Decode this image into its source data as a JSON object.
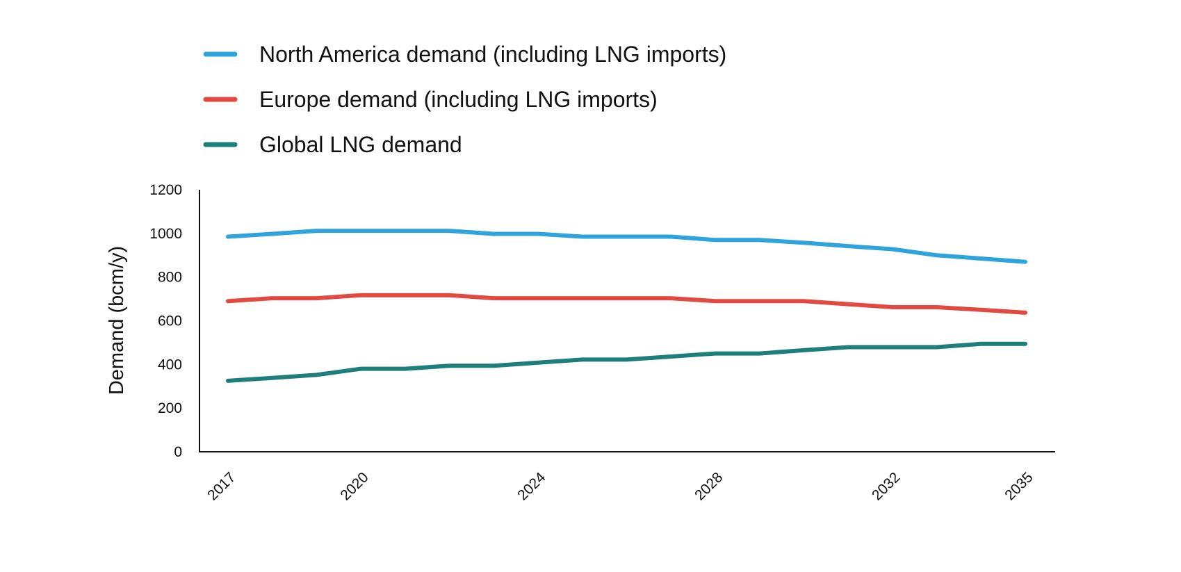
{
  "chart_data": {
    "type": "line",
    "title": "",
    "xlabel": "",
    "ylabel": "Demand (bcm/y)",
    "x": [
      2017,
      2018,
      2019,
      2020,
      2021,
      2022,
      2023,
      2024,
      2025,
      2026,
      2027,
      2028,
      2029,
      2030,
      2031,
      2032,
      2033,
      2034,
      2035
    ],
    "x_tick_labels": [
      "2017",
      "2020",
      "2024",
      "2028",
      "2032",
      "2035"
    ],
    "y_tick_labels": [
      "0",
      "200",
      "400",
      "600",
      "800",
      "1000",
      "1200"
    ],
    "ylim": [
      0,
      1200
    ],
    "grid": false,
    "legend_position": "top-left",
    "series": [
      {
        "name": "North America demand (including LNG imports)",
        "color": "#2ea3dc",
        "values": [
          985,
          998,
          1012,
          1012,
          1012,
          1012,
          998,
          998,
          985,
          985,
          985,
          970,
          970,
          957,
          942,
          928,
          900,
          885,
          870
        ]
      },
      {
        "name": "Europe demand (including LNG imports)",
        "color": "#e24a41",
        "values": [
          690,
          703,
          703,
          717,
          717,
          717,
          703,
          703,
          703,
          703,
          703,
          690,
          690,
          690,
          676,
          662,
          662,
          650,
          637
        ]
      },
      {
        "name": "Global LNG demand",
        "color": "#1d7e7b",
        "values": [
          325,
          338,
          352,
          380,
          380,
          394,
          394,
          408,
          422,
          422,
          436,
          450,
          450,
          465,
          479,
          479,
          479,
          494,
          494
        ]
      }
    ]
  }
}
